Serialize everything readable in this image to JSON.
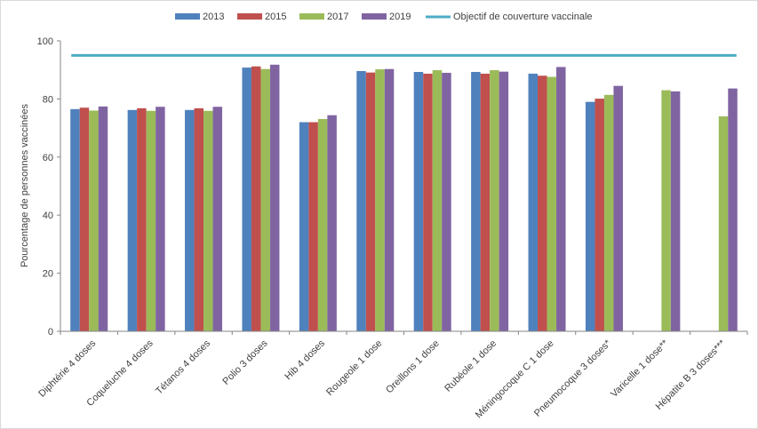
{
  "chart_data": {
    "type": "bar",
    "title": "",
    "xlabel": "",
    "ylabel": "Pourcentage de personnes vaccinées",
    "ylim": [
      0,
      100
    ],
    "yticks": [
      0,
      20,
      40,
      60,
      80,
      100
    ],
    "grid": false,
    "legend_position": "top",
    "categories": [
      "Diphtérie 4 doses",
      "Coqueluche 4 doses",
      "Tétanos 4 doses",
      "Polio 3 doses",
      "Hib 4 doses",
      "Rougeole 1 dose",
      "Oreillons 1 dose",
      "Rubéole 1 dose",
      "Méningocoque C 1 dose",
      "Pneumocoque 3 doses*",
      "Varicelle 1 dose**",
      "Hépatite B 3 doses***"
    ],
    "series": [
      {
        "name": "2013",
        "color": "#4f81bd",
        "values": [
          76.5,
          76.2,
          76.2,
          90.8,
          72.0,
          89.6,
          89.3,
          89.3,
          88.7,
          79.0,
          null,
          null
        ]
      },
      {
        "name": "2015",
        "color": "#c0504d",
        "values": [
          77.0,
          76.8,
          76.8,
          91.2,
          72.0,
          89.1,
          88.7,
          88.7,
          88.0,
          80.1,
          null,
          null
        ]
      },
      {
        "name": "2017",
        "color": "#9bbb59",
        "values": [
          76.0,
          75.9,
          75.9,
          90.3,
          73.1,
          90.2,
          89.9,
          89.9,
          87.6,
          81.4,
          83.0,
          74.0
        ]
      },
      {
        "name": "2019",
        "color": "#8064a2",
        "values": [
          77.4,
          77.3,
          77.3,
          91.8,
          74.4,
          90.3,
          89.0,
          89.4,
          91.0,
          84.5,
          82.6,
          83.6
        ]
      }
    ],
    "target_line": {
      "name": "Objectif de couverture vaccinale",
      "value": 95,
      "color": "#4bacc6"
    }
  }
}
